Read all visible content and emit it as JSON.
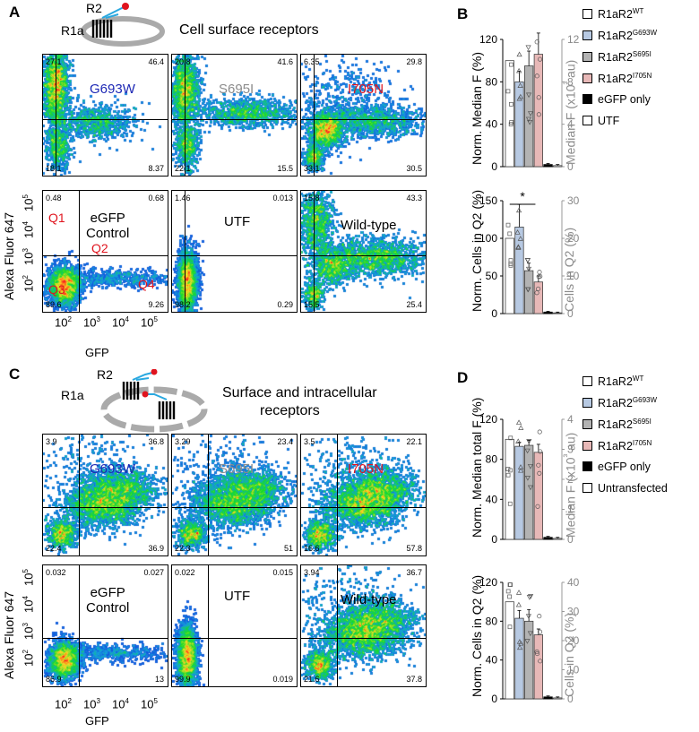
{
  "panels": {
    "A": {
      "label": "A",
      "title": "Cell surface receptors",
      "cartoon_r2": "R2",
      "cartoon_r1a": "R1a",
      "plots": [
        {
          "sample": "G693W",
          "color": "#1d28b5",
          "q1": "27.1",
          "q2": "46.4",
          "q3": "18.1",
          "q4": "8.37",
          "hline_frac": 0.53,
          "vline_frac": 0.1,
          "pattern": "surface_G"
        },
        {
          "sample": "S695I",
          "color": "#8c8c8c",
          "q1": "20.8",
          "q2": "41.6",
          "q3": "22.1",
          "q4": "15.5",
          "hline_frac": 0.53,
          "vline_frac": 0.1,
          "pattern": "surface_S"
        },
        {
          "sample": "I705N",
          "color": "#e0141e",
          "q1": "6.35",
          "q2": "29.8",
          "q3": "33.1",
          "q4": "30.5",
          "hline_frac": 0.53,
          "vline_frac": 0.1,
          "pattern": "surface_I"
        },
        {
          "sample": "eGFP\nControl",
          "color": "#000000",
          "q1": "0.48",
          "q2": "0.68",
          "q3": "89.6",
          "q4": "9.26",
          "hline_frac": 0.53,
          "vline_frac": 0.29,
          "pattern": "egfp"
        },
        {
          "sample": "UTF",
          "color": "#000000",
          "q1": "1.46",
          "q2": "0.013",
          "q3": "98.2",
          "q4": "0.29",
          "hline_frac": 0.53,
          "vline_frac": 0.1,
          "pattern": "utf"
        },
        {
          "sample": "Wild-type",
          "color": "#000000",
          "q1": "15.8",
          "q2": "43.3",
          "q3": "15.5",
          "q4": "25.4",
          "hline_frac": 0.53,
          "vline_frac": 0.1,
          "pattern": "surface_W"
        }
      ],
      "quadrant_labels": [
        "Q1",
        "Q2",
        "Q3",
        "Q4"
      ],
      "y_axis_label": "Alexa Fluor 647",
      "x_axis_label": "GFP",
      "ticks": [
        "10^2",
        "10^3",
        "10^4",
        "10^5"
      ]
    },
    "C": {
      "label": "C",
      "title_line1": "Surface and intracellular",
      "title_line2": "receptors",
      "cartoon_r2": "R2",
      "cartoon_r1a": "R1a",
      "plots": [
        {
          "sample": "G693W",
          "color": "#1d28b5",
          "q1": "3.9",
          "q2": "36.8",
          "q3": "22.4",
          "q4": "36.9",
          "hline_frac": 0.6,
          "vline_frac": 0.29,
          "pattern": "total"
        },
        {
          "sample": "S695I",
          "color": "#8c8c8c",
          "q1": "3.29",
          "q2": "23.4",
          "q3": "22.3",
          "q4": "51",
          "hline_frac": 0.6,
          "vline_frac": 0.29,
          "pattern": "total"
        },
        {
          "sample": "I705N",
          "color": "#e0141e",
          "q1": "3.5",
          "q2": "22.1",
          "q3": "16.6",
          "q4": "57.8",
          "hline_frac": 0.6,
          "vline_frac": 0.29,
          "pattern": "total"
        },
        {
          "sample": "eGFP\nControl",
          "color": "#000000",
          "q1": "0.032",
          "q2": "0.027",
          "q3": "86.9",
          "q4": "13",
          "hline_frac": 0.6,
          "vline_frac": 0.29,
          "pattern": "egfp"
        },
        {
          "sample": "UTF",
          "color": "#000000",
          "q1": "0.022",
          "q2": "0.015",
          "q3": "99.9",
          "q4": "0.019",
          "hline_frac": 0.6,
          "vline_frac": 0.29,
          "pattern": "utf"
        },
        {
          "sample": "Wild-type",
          "color": "#000000",
          "q1": "3.94",
          "q2": "36.7",
          "q3": "21.6",
          "q4": "37.8",
          "hline_frac": 0.6,
          "vline_frac": 0.29,
          "pattern": "total"
        }
      ],
      "y_axis_label": "Alexa Fluor 647",
      "x_axis_label": "GFP",
      "ticks": [
        "10^2",
        "10^3",
        "10^4",
        "10^5"
      ]
    },
    "B": {
      "label": "B"
    },
    "D": {
      "label": "D"
    }
  },
  "legend_B": [
    {
      "base": "R1aR2",
      "sup": "WT",
      "fill": "#ffffff"
    },
    {
      "base": "R1aR2",
      "sup": "G693W",
      "fill": "#b7c9e2"
    },
    {
      "base": "R1aR2",
      "sup": "S695I",
      "fill": "#b3b3b3"
    },
    {
      "base": "R1aR2",
      "sup": "I705N",
      "fill": "#e7b8b7"
    },
    {
      "base": "eGFP only",
      "sup": "",
      "fill": "#000000"
    },
    {
      "base": "UTF",
      "sup": "",
      "fill": "#ffffff"
    }
  ],
  "legend_D": [
    {
      "base": "R1aR2",
      "sup": "WT",
      "fill": "#ffffff"
    },
    {
      "base": "R1aR2",
      "sup": "G693W",
      "fill": "#b7c9e2"
    },
    {
      "base": "R1aR2",
      "sup": "S695I",
      "fill": "#b3b3b3"
    },
    {
      "base": "R1aR2",
      "sup": "I705N",
      "fill": "#e7b8b7"
    },
    {
      "base": "eGFP only",
      "sup": "",
      "fill": "#000000"
    },
    {
      "base": "Untransfected",
      "sup": "",
      "fill": "#ffffff"
    }
  ],
  "chart_data": [
    {
      "type": "bar",
      "id": "B_top",
      "categories": [
        "R1aR2 WT",
        "R1aR2 G693W",
        "R1aR2 S695I",
        "R1aR2 I705N",
        "eGFP only",
        "UTF"
      ],
      "values": [
        100,
        80,
        95,
        106,
        2,
        1
      ],
      "errors": [
        0,
        10,
        14,
        20,
        1,
        1
      ],
      "colors": [
        "#ffffff",
        "#b7c9e2",
        "#b3b3b3",
        "#e7b8b7",
        "#000000",
        "#ffffff"
      ],
      "ylabel": "Norm. Median F (%)",
      "ylim": [
        0,
        120
      ],
      "yticks": [
        "0",
        "40",
        "80",
        "120"
      ],
      "ytick_values": [
        0,
        40,
        80,
        120
      ],
      "y2label": "Median F (x10³ au)",
      "y2ticks": [
        "0",
        "4",
        "8",
        "12"
      ],
      "significance": ""
    },
    {
      "type": "bar",
      "id": "B_bottom",
      "categories": [
        "R1aR2 WT",
        "R1aR2 G693W",
        "R1aR2 S695I",
        "R1aR2 I705N",
        "eGFP only",
        "UTF"
      ],
      "values": [
        100,
        115,
        57,
        42,
        2,
        1
      ],
      "errors": [
        0,
        30,
        10,
        8,
        1,
        1
      ],
      "colors": [
        "#ffffff",
        "#b7c9e2",
        "#b3b3b3",
        "#e7b8b7",
        "#000000",
        "#ffffff"
      ],
      "ylabel": "Norm. Cells in Q2 (%)",
      "ylim": [
        0,
        150
      ],
      "yticks": [
        "0",
        "50",
        "100",
        "150"
      ],
      "ytick_values": [
        0,
        50,
        100,
        150
      ],
      "y2label": "Cells in Q2 (%)",
      "y2ticks": [
        "0",
        "10",
        "20",
        "30"
      ],
      "significance": "*"
    },
    {
      "type": "bar",
      "id": "D_top",
      "categories": [
        "R1aR2 WT",
        "R1aR2 G693W",
        "R1aR2 S695I",
        "R1aR2 I705N",
        "eGFP only",
        "Untransfected"
      ],
      "values": [
        100,
        93,
        94,
        87,
        2,
        1
      ],
      "errors": [
        0,
        4,
        5,
        8,
        1,
        1
      ],
      "colors": [
        "#ffffff",
        "#b7c9e2",
        "#b3b3b3",
        "#e7b8b7",
        "#000000",
        "#ffffff"
      ],
      "ylabel": "Norm. Median total  F (%)",
      "ylim": [
        0,
        120
      ],
      "yticks": [
        "0",
        "40",
        "80",
        "120"
      ],
      "ytick_values": [
        0,
        40,
        80,
        120
      ],
      "y2label": "Median F (x10³ au)",
      "y2ticks": [
        "0",
        "1",
        "2",
        "3",
        "4"
      ],
      "significance": ""
    },
    {
      "type": "bar",
      "id": "D_bottom",
      "categories": [
        "R1aR2 WT",
        "R1aR2 G693W",
        "R1aR2 S695I",
        "R1aR2 I705N",
        "eGFP only",
        "Untransfected"
      ],
      "values": [
        100,
        83,
        80,
        66,
        2,
        1
      ],
      "errors": [
        0,
        8,
        12,
        6,
        1,
        1
      ],
      "colors": [
        "#ffffff",
        "#b7c9e2",
        "#b3b3b3",
        "#e7b8b7",
        "#000000",
        "#ffffff"
      ],
      "ylabel": "Norm. Cells in Q2 (%)",
      "ylim": [
        0,
        120
      ],
      "yticks": [
        "0",
        "40",
        "80",
        "120"
      ],
      "ytick_values": [
        0,
        40,
        80,
        120
      ],
      "y2label": "Cells in Q2 (%)",
      "y2ticks": [
        "0",
        "10",
        "20",
        "30",
        "40"
      ],
      "significance": ""
    }
  ]
}
